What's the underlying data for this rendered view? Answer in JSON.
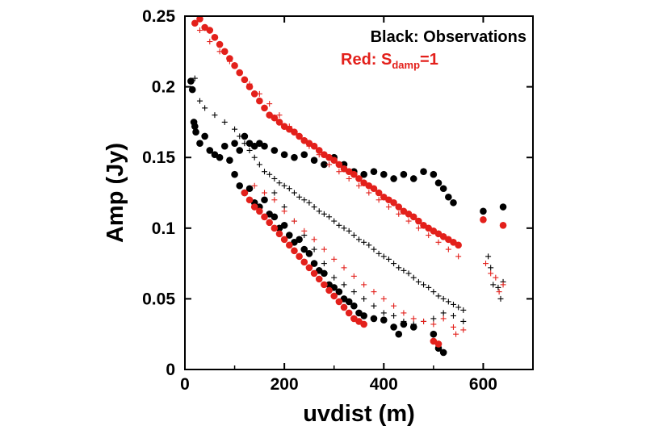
{
  "chart_data": {
    "type": "scatter",
    "xlabel": "uvdist (m)",
    "ylabel": "Amp (Jy)",
    "xlim": [
      0,
      700
    ],
    "ylim": [
      0,
      0.25
    ],
    "xticks": [
      "0",
      "200",
      "400",
      "600"
    ],
    "yticks": [
      "0",
      "0.05",
      "0.1",
      "0.15",
      "0.2",
      "0.25"
    ],
    "legend": {
      "placement": "top-right",
      "black_text": "Black: Observations",
      "red_prefix": "Red: S",
      "red_sub": "damp",
      "red_suffix": "=1"
    },
    "colors": {
      "observations": "#000000",
      "model": "#e3201b"
    },
    "series": [
      {
        "color": "#000000",
        "marker": "dot",
        "points": [
          [
            12,
            0.204
          ],
          [
            15,
            0.198
          ],
          [
            18,
            0.175
          ],
          [
            20,
            0.172
          ],
          [
            22,
            0.168
          ],
          [
            30,
            0.16
          ],
          [
            40,
            0.165
          ],
          [
            50,
            0.155
          ],
          [
            60,
            0.152
          ],
          [
            70,
            0.15
          ],
          [
            80,
            0.158
          ],
          [
            90,
            0.148
          ],
          [
            100,
            0.16
          ],
          [
            110,
            0.155
          ],
          [
            120,
            0.165
          ],
          [
            130,
            0.16
          ],
          [
            140,
            0.158
          ],
          [
            150,
            0.16
          ],
          [
            160,
            0.158
          ],
          [
            180,
            0.155
          ],
          [
            200,
            0.152
          ],
          [
            220,
            0.15
          ],
          [
            240,
            0.152
          ],
          [
            260,
            0.148
          ],
          [
            280,
            0.145
          ],
          [
            300,
            0.15
          ],
          [
            320,
            0.145
          ],
          [
            340,
            0.14
          ],
          [
            360,
            0.138
          ],
          [
            380,
            0.14
          ],
          [
            400,
            0.138
          ],
          [
            420,
            0.135
          ],
          [
            440,
            0.138
          ],
          [
            460,
            0.135
          ],
          [
            480,
            0.14
          ],
          [
            500,
            0.138
          ],
          [
            510,
            0.132
          ],
          [
            520,
            0.128
          ],
          [
            530,
            0.122
          ],
          [
            540,
            0.118
          ],
          [
            100,
            0.138
          ],
          [
            110,
            0.13
          ],
          [
            120,
            0.125
          ],
          [
            130,
            0.128
          ],
          [
            140,
            0.118
          ],
          [
            150,
            0.115
          ],
          [
            160,
            0.12
          ],
          [
            170,
            0.11
          ],
          [
            180,
            0.108
          ],
          [
            190,
            0.1
          ],
          [
            200,
            0.102
          ],
          [
            210,
            0.095
          ],
          [
            220,
            0.09
          ],
          [
            230,
            0.092
          ],
          [
            240,
            0.085
          ],
          [
            250,
            0.082
          ],
          [
            260,
            0.075
          ],
          [
            270,
            0.07
          ],
          [
            280,
            0.068
          ],
          [
            290,
            0.06
          ],
          [
            300,
            0.058
          ],
          [
            310,
            0.055
          ],
          [
            320,
            0.05
          ],
          [
            330,
            0.048
          ],
          [
            340,
            0.045
          ],
          [
            350,
            0.04
          ],
          [
            360,
            0.038
          ],
          [
            380,
            0.036
          ],
          [
            400,
            0.035
          ],
          [
            420,
            0.03
          ],
          [
            430,
            0.025
          ],
          [
            440,
            0.032
          ],
          [
            460,
            0.03
          ],
          [
            500,
            0.025
          ],
          [
            510,
            0.015
          ],
          [
            520,
            0.012
          ],
          [
            600,
            0.112
          ],
          [
            640,
            0.115
          ]
        ]
      },
      {
        "color": "#e3201b",
        "marker": "dot",
        "points": [
          [
            20,
            0.245
          ],
          [
            30,
            0.248
          ],
          [
            40,
            0.242
          ],
          [
            50,
            0.24
          ],
          [
            60,
            0.235
          ],
          [
            70,
            0.23
          ],
          [
            80,
            0.225
          ],
          [
            90,
            0.22
          ],
          [
            100,
            0.215
          ],
          [
            110,
            0.21
          ],
          [
            120,
            0.205
          ],
          [
            130,
            0.2
          ],
          [
            140,
            0.195
          ],
          [
            150,
            0.19
          ],
          [
            160,
            0.185
          ],
          [
            170,
            0.18
          ],
          [
            180,
            0.178
          ],
          [
            190,
            0.175
          ],
          [
            200,
            0.172
          ],
          [
            210,
            0.17
          ],
          [
            220,
            0.168
          ],
          [
            230,
            0.165
          ],
          [
            240,
            0.162
          ],
          [
            250,
            0.16
          ],
          [
            260,
            0.158
          ],
          [
            270,
            0.155
          ],
          [
            280,
            0.152
          ],
          [
            290,
            0.15
          ],
          [
            300,
            0.148
          ],
          [
            310,
            0.145
          ],
          [
            320,
            0.142
          ],
          [
            330,
            0.14
          ],
          [
            340,
            0.138
          ],
          [
            350,
            0.135
          ],
          [
            360,
            0.132
          ],
          [
            370,
            0.13
          ],
          [
            380,
            0.128
          ],
          [
            390,
            0.125
          ],
          [
            400,
            0.122
          ],
          [
            410,
            0.12
          ],
          [
            420,
            0.118
          ],
          [
            430,
            0.115
          ],
          [
            440,
            0.112
          ],
          [
            450,
            0.11
          ],
          [
            460,
            0.108
          ],
          [
            470,
            0.105
          ],
          [
            480,
            0.102
          ],
          [
            490,
            0.1
          ],
          [
            500,
            0.098
          ],
          [
            510,
            0.096
          ],
          [
            520,
            0.094
          ],
          [
            530,
            0.092
          ],
          [
            540,
            0.09
          ],
          [
            550,
            0.088
          ],
          [
            120,
            0.125
          ],
          [
            130,
            0.12
          ],
          [
            140,
            0.115
          ],
          [
            150,
            0.112
          ],
          [
            160,
            0.108
          ],
          [
            170,
            0.104
          ],
          [
            180,
            0.1
          ],
          [
            190,
            0.096
          ],
          [
            200,
            0.092
          ],
          [
            210,
            0.088
          ],
          [
            220,
            0.084
          ],
          [
            230,
            0.08
          ],
          [
            240,
            0.076
          ],
          [
            250,
            0.072
          ],
          [
            260,
            0.068
          ],
          [
            270,
            0.064
          ],
          [
            280,
            0.06
          ],
          [
            290,
            0.056
          ],
          [
            300,
            0.052
          ],
          [
            310,
            0.048
          ],
          [
            320,
            0.044
          ],
          [
            330,
            0.04
          ],
          [
            340,
            0.036
          ],
          [
            350,
            0.034
          ],
          [
            360,
            0.032
          ],
          [
            500,
            0.02
          ],
          [
            510,
            0.018
          ],
          [
            600,
            0.106
          ],
          [
            640,
            0.102
          ]
        ]
      },
      {
        "color": "#000000",
        "marker": "plus",
        "points": [
          [
            20,
            0.206
          ],
          [
            30,
            0.19
          ],
          [
            40,
            0.185
          ],
          [
            60,
            0.18
          ],
          [
            80,
            0.175
          ],
          [
            100,
            0.17
          ],
          [
            110,
            0.165
          ],
          [
            120,
            0.16
          ],
          [
            130,
            0.155
          ],
          [
            140,
            0.15
          ],
          [
            150,
            0.145
          ],
          [
            160,
            0.14
          ],
          [
            170,
            0.138
          ],
          [
            180,
            0.135
          ],
          [
            190,
            0.132
          ],
          [
            200,
            0.13
          ],
          [
            210,
            0.128
          ],
          [
            220,
            0.125
          ],
          [
            230,
            0.122
          ],
          [
            240,
            0.12
          ],
          [
            250,
            0.118
          ],
          [
            260,
            0.115
          ],
          [
            270,
            0.112
          ],
          [
            280,
            0.11
          ],
          [
            290,
            0.108
          ],
          [
            300,
            0.105
          ],
          [
            310,
            0.102
          ],
          [
            320,
            0.1
          ],
          [
            330,
            0.098
          ],
          [
            340,
            0.095
          ],
          [
            350,
            0.092
          ],
          [
            360,
            0.09
          ],
          [
            370,
            0.088
          ],
          [
            380,
            0.085
          ],
          [
            390,
            0.082
          ],
          [
            400,
            0.08
          ],
          [
            410,
            0.078
          ],
          [
            420,
            0.075
          ],
          [
            430,
            0.072
          ],
          [
            440,
            0.07
          ],
          [
            450,
            0.068
          ],
          [
            460,
            0.065
          ],
          [
            470,
            0.062
          ],
          [
            480,
            0.06
          ],
          [
            490,
            0.058
          ],
          [
            500,
            0.055
          ],
          [
            510,
            0.052
          ],
          [
            520,
            0.05
          ],
          [
            530,
            0.048
          ],
          [
            540,
            0.046
          ],
          [
            550,
            0.044
          ],
          [
            560,
            0.042
          ],
          [
            180,
            0.125
          ],
          [
            200,
            0.115
          ],
          [
            220,
            0.105
          ],
          [
            240,
            0.095
          ],
          [
            260,
            0.085
          ],
          [
            280,
            0.075
          ],
          [
            300,
            0.065
          ],
          [
            320,
            0.06
          ],
          [
            340,
            0.055
          ],
          [
            360,
            0.05
          ],
          [
            380,
            0.045
          ],
          [
            400,
            0.04
          ],
          [
            420,
            0.038
          ],
          [
            440,
            0.034
          ],
          [
            460,
            0.032
          ],
          [
            480,
            0.034
          ],
          [
            500,
            0.036
          ],
          [
            520,
            0.04
          ],
          [
            540,
            0.038
          ],
          [
            560,
            0.034
          ],
          [
            610,
            0.08
          ],
          [
            615,
            0.072
          ],
          [
            620,
            0.06
          ],
          [
            630,
            0.058
          ],
          [
            640,
            0.062
          ],
          [
            635,
            0.05
          ]
        ]
      },
      {
        "color": "#e3201b",
        "marker": "plus",
        "points": [
          [
            30,
            0.24
          ],
          [
            50,
            0.232
          ],
          [
            70,
            0.225
          ],
          [
            90,
            0.218
          ],
          [
            110,
            0.21
          ],
          [
            130,
            0.202
          ],
          [
            150,
            0.195
          ],
          [
            170,
            0.188
          ],
          [
            190,
            0.18
          ],
          [
            210,
            0.172
          ],
          [
            230,
            0.165
          ],
          [
            250,
            0.158
          ],
          [
            270,
            0.152
          ],
          [
            290,
            0.145
          ],
          [
            310,
            0.14
          ],
          [
            330,
            0.135
          ],
          [
            350,
            0.13
          ],
          [
            370,
            0.125
          ],
          [
            390,
            0.12
          ],
          [
            410,
            0.115
          ],
          [
            430,
            0.11
          ],
          [
            450,
            0.105
          ],
          [
            470,
            0.1
          ],
          [
            490,
            0.095
          ],
          [
            510,
            0.09
          ],
          [
            530,
            0.085
          ],
          [
            550,
            0.08
          ],
          [
            140,
            0.13
          ],
          [
            160,
            0.125
          ],
          [
            180,
            0.12
          ],
          [
            200,
            0.112
          ],
          [
            220,
            0.105
          ],
          [
            240,
            0.098
          ],
          [
            260,
            0.092
          ],
          [
            280,
            0.085
          ],
          [
            300,
            0.078
          ],
          [
            320,
            0.072
          ],
          [
            340,
            0.066
          ],
          [
            360,
            0.06
          ],
          [
            380,
            0.055
          ],
          [
            400,
            0.05
          ],
          [
            420,
            0.045
          ],
          [
            440,
            0.04
          ],
          [
            460,
            0.036
          ],
          [
            480,
            0.034
          ],
          [
            500,
            0.032
          ],
          [
            520,
            0.036
          ],
          [
            540,
            0.03
          ],
          [
            560,
            0.028
          ],
          [
            545,
            0.025
          ],
          [
            605,
            0.075
          ],
          [
            615,
            0.068
          ],
          [
            625,
            0.065
          ],
          [
            632,
            0.055
          ],
          [
            640,
            0.06
          ]
        ]
      }
    ]
  }
}
